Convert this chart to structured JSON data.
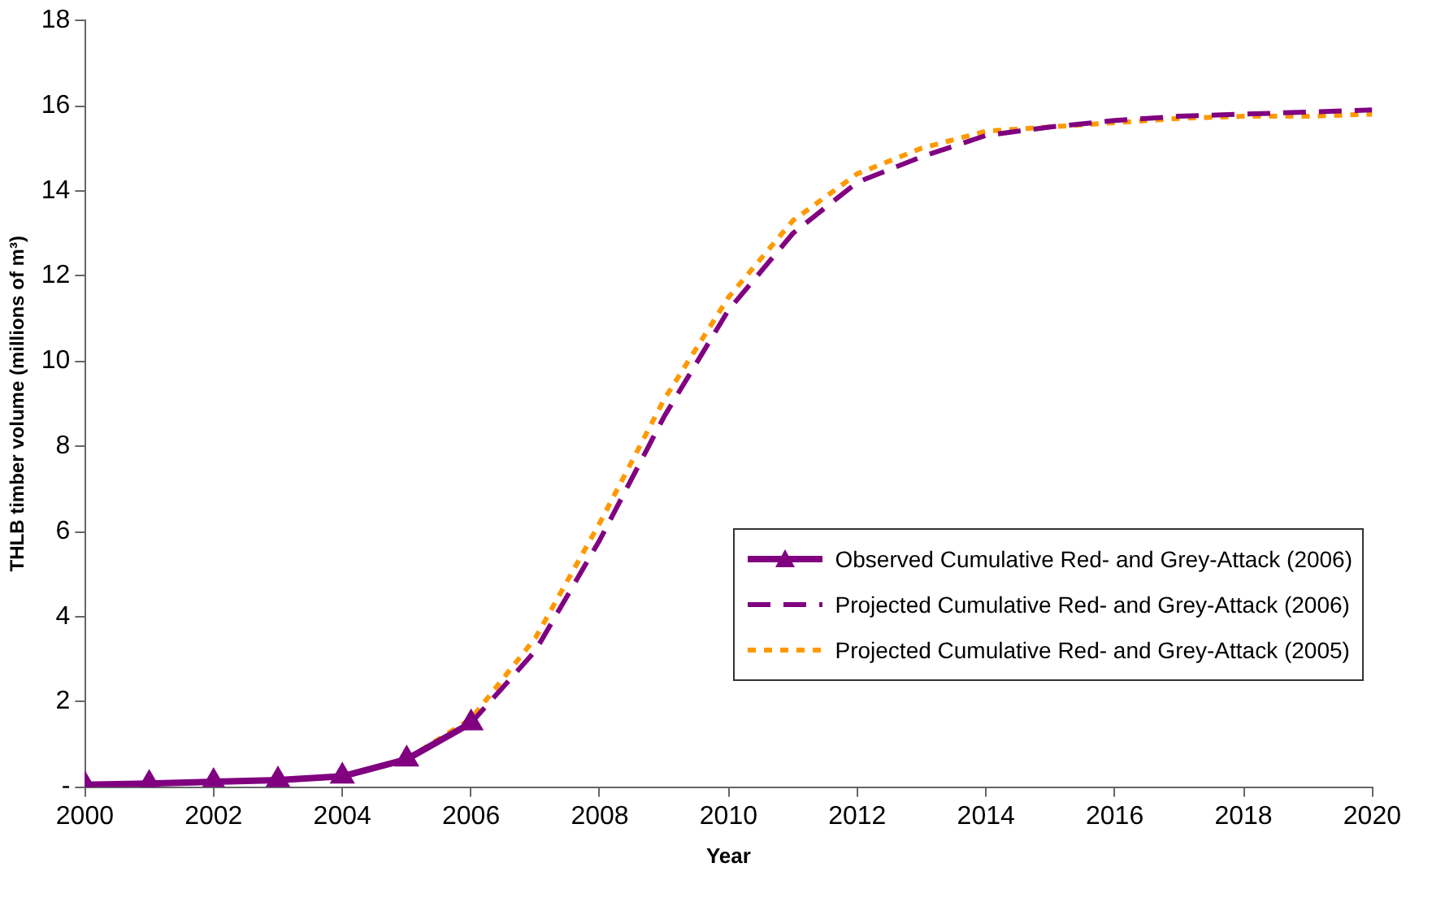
{
  "chart_data": {
    "type": "line",
    "xlabel": "Year",
    "ylabel": "THLB timber volume (millions of m³)",
    "xlim": [
      2000,
      2020
    ],
    "xticks": [
      2000,
      2002,
      2004,
      2006,
      2008,
      2010,
      2012,
      2014,
      2016,
      2018,
      2020
    ],
    "ylim": [
      0,
      18
    ],
    "yticks": [
      {
        "value": 0,
        "label": "-"
      },
      2,
      4,
      6,
      8,
      10,
      12,
      14,
      16,
      18
    ],
    "grid": false,
    "legend": "right",
    "series": [
      {
        "name": "Observed Cumulative Red- and Grey-Attack (2006)",
        "color": "#800080",
        "marker": "triangle",
        "line_style": "solid",
        "x": [
          2000,
          2001,
          2002,
          2003,
          2004,
          2005,
          2006
        ],
        "values": [
          0.05,
          0.08,
          0.12,
          0.16,
          0.25,
          0.65,
          1.5
        ]
      },
      {
        "name": "Projected Cumulative Red- and Grey-Attack (2006)",
        "color": "#800080",
        "marker": "none",
        "line_style": "dashed",
        "x": [
          2005,
          2006,
          2007,
          2008,
          2009,
          2010,
          2011,
          2012,
          2013,
          2014,
          2015,
          2016,
          2017,
          2018,
          2019,
          2020
        ],
        "values": [
          0.65,
          1.5,
          3.2,
          5.8,
          8.7,
          11.2,
          13.0,
          14.2,
          14.8,
          15.3,
          15.5,
          15.65,
          15.75,
          15.8,
          15.85,
          15.9
        ]
      },
      {
        "name": "Projected Cumulative Red- and Grey-Attack (2005)",
        "color": "#ff9900",
        "marker": "none",
        "line_style": "dotted",
        "x": [
          2005,
          2006,
          2007,
          2008,
          2009,
          2010,
          2011,
          2012,
          2013,
          2014,
          2015,
          2016,
          2017,
          2018,
          2019,
          2020
        ],
        "values": [
          0.65,
          1.6,
          3.5,
          6.2,
          9.1,
          11.5,
          13.3,
          14.4,
          15.0,
          15.4,
          15.5,
          15.6,
          15.7,
          15.75,
          15.75,
          15.8
        ]
      }
    ]
  }
}
